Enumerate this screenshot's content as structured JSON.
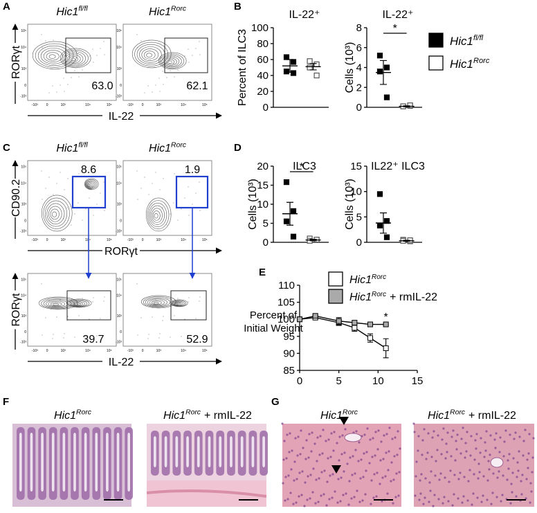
{
  "panel_labels": [
    "A",
    "B",
    "C",
    "D",
    "E",
    "F",
    "G"
  ],
  "legend": [
    {
      "base": "Hic1",
      "sup": "fl/fl",
      "color": "#000000"
    },
    {
      "base": "Hic1",
      "sup": "Rorc",
      "color": "#ffffff"
    }
  ],
  "treatment": "+ rmIL-22",
  "flow": {
    "ticks": [
      "-10³",
      "0",
      "10³",
      "10⁴",
      "10⁵"
    ],
    "rows": [
      {
        "ylabel": "RORγt",
        "xlabel": "IL-22",
        "gates": [
          "63.0",
          "62.1"
        ]
      },
      {
        "ylabel": "CD90.2",
        "xlabel": "RORγt",
        "gates": [
          "8.6",
          "1.9"
        ]
      },
      {
        "ylabel": "RORγt",
        "xlabel": "IL-22",
        "gates": [
          "39.7",
          "52.9"
        ]
      }
    ]
  },
  "chart_data": [
    {
      "type": "dot",
      "title": "IL-22⁺",
      "ylabel": "Percent of ILC3",
      "ylim": [
        0,
        100
      ],
      "yticks": [
        0,
        20,
        40,
        60,
        80,
        100
      ],
      "series": [
        {
          "color": "#000000",
          "values": [
            63,
            57,
            45,
            43
          ],
          "mean": 52,
          "sem": 8
        },
        {
          "color": "#ffffff",
          "values": [
            58,
            54,
            50,
            40
          ],
          "mean": 51,
          "sem": 4
        }
      ]
    },
    {
      "type": "dot",
      "title": "IL-22⁺",
      "ylabel": "Cells (10³)",
      "ylim": [
        0,
        8
      ],
      "yticks": [
        0,
        2,
        4,
        6,
        8
      ],
      "significance": "*",
      "series": [
        {
          "color": "#000000",
          "values": [
            5.2,
            4.0,
            3.6,
            1.0
          ],
          "mean": 3.5,
          "sem": 1.2
        },
        {
          "color": "#ffffff",
          "values": [
            0.1,
            0.15,
            0.1,
            0.2
          ],
          "mean": 0.1,
          "sem": 0.05
        }
      ]
    },
    {
      "type": "dot",
      "title": "ILC3",
      "ylabel": "Cells (10³)",
      "ylim": [
        0,
        20
      ],
      "yticks": [
        0,
        5,
        10,
        15,
        20
      ],
      "significance": "*",
      "series": [
        {
          "color": "#000000",
          "values": [
            15.8,
            8.2,
            5.5,
            1.5
          ],
          "mean": 7.5,
          "sem": 3.0
        },
        {
          "color": "#ffffff",
          "values": [
            1.0,
            0.6,
            0.4,
            0.7
          ],
          "mean": 0.6,
          "sem": 0.2
        }
      ]
    },
    {
      "type": "dot",
      "title": "IL22⁺ ILC3",
      "ylabel": "Cells (10³)",
      "ylim": [
        0,
        15
      ],
      "yticks": [
        0,
        5,
        10,
        15
      ],
      "series": [
        {
          "color": "#000000",
          "values": [
            9.5,
            4.2,
            3.3,
            1.0
          ],
          "mean": 3.8,
          "sem": 2.0
        },
        {
          "color": "#ffffff",
          "values": [
            0.5,
            0.2,
            0.3,
            0.4
          ],
          "mean": 0.3,
          "sem": 0.1
        }
      ]
    },
    {
      "type": "line",
      "ylabel": [
        "Percent of",
        "Initial Weight"
      ],
      "x": [
        0,
        2,
        5,
        7,
        9,
        11
      ],
      "xlim": [
        0,
        15
      ],
      "xticks": [
        0,
        5,
        10,
        15
      ],
      "ylim": [
        85,
        110
      ],
      "yticks": [
        85,
        90,
        95,
        100,
        105,
        110
      ],
      "annotation": {
        "text": "*",
        "x": 11
      },
      "series": [
        {
          "name": "Hic1",
          "name_sup": "Rorc",
          "color": "#ffffff",
          "values": [
            100,
            100.5,
            99,
            97.5,
            94.5,
            91.5
          ],
          "errors": [
            0.2,
            0.5,
            0.8,
            1.0,
            1.2,
            2.8
          ]
        },
        {
          "name": "Hic1",
          "name_sup": "Rorc",
          "name_suffix": "+ rmIL-22",
          "color": "#aaaaaa",
          "values": [
            100,
            101,
            99.5,
            99,
            98.5,
            98.5
          ],
          "errors": [
            0.3,
            0.5,
            1.0,
            0.5,
            0.3,
            0.3
          ]
        }
      ]
    }
  ]
}
